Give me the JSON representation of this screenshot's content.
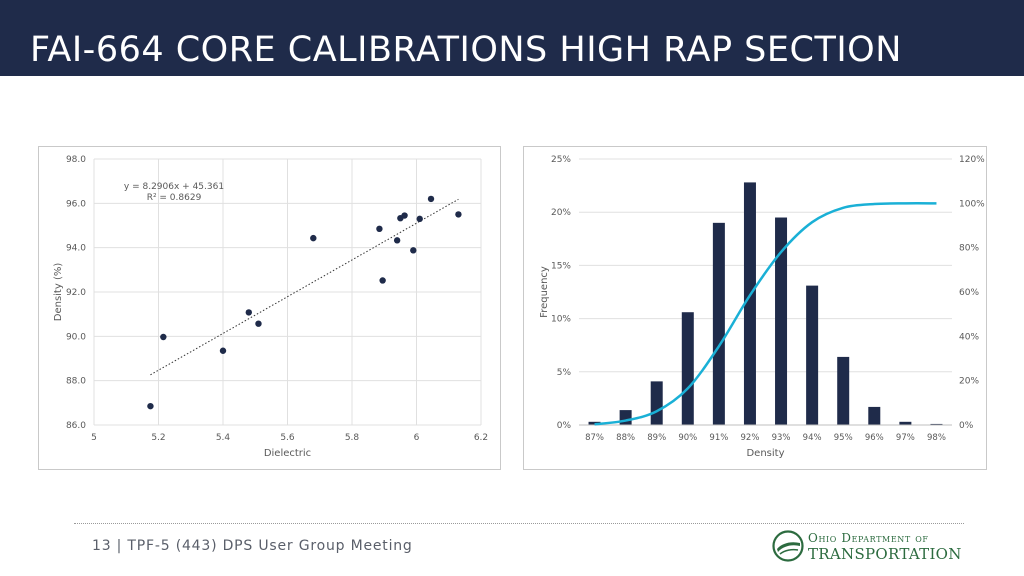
{
  "slide": {
    "title": "FAI-664 CORE CALIBRATIONS HIGH RAP SECTION",
    "footer": "13 | TPF-5 (443) DPS User Group Meeting",
    "logo": {
      "line1": "Ohio Department of",
      "line2": "Transportation",
      "color": "#2c6b3f"
    },
    "header_color": "#1f2b4a"
  },
  "chart_data": [
    {
      "type": "scatter",
      "title": "",
      "xlabel": "Dielectric",
      "ylabel": "Density (%)",
      "xlim": [
        5,
        6.2
      ],
      "ylim": [
        86,
        98
      ],
      "x_ticks": [
        "5",
        "5.2",
        "5.4",
        "5.6",
        "5.8",
        "6",
        "6.2"
      ],
      "y_ticks": [
        "86.0",
        "88.0",
        "90.0",
        "92.0",
        "94.0",
        "96.0",
        "98.0"
      ],
      "grid": true,
      "point_color": "#1f2b4a",
      "points": [
        {
          "x": 5.175,
          "y": 86.85
        },
        {
          "x": 5.215,
          "y": 89.97
        },
        {
          "x": 5.4,
          "y": 89.35
        },
        {
          "x": 5.48,
          "y": 91.08
        },
        {
          "x": 5.51,
          "y": 90.57
        },
        {
          "x": 5.68,
          "y": 94.43
        },
        {
          "x": 5.885,
          "y": 94.85
        },
        {
          "x": 5.895,
          "y": 92.52
        },
        {
          "x": 5.94,
          "y": 94.33
        },
        {
          "x": 5.95,
          "y": 95.33
        },
        {
          "x": 5.963,
          "y": 95.45
        },
        {
          "x": 5.99,
          "y": 93.88
        },
        {
          "x": 6.01,
          "y": 95.3
        },
        {
          "x": 6.045,
          "y": 96.2
        },
        {
          "x": 6.13,
          "y": 95.5
        }
      ],
      "trendline": {
        "equation": "y = 8.2906x + 45.361",
        "r2": "R² = 0.8629",
        "slope": 8.2906,
        "intercept": 45.361,
        "x_range": [
          5.175,
          6.13
        ]
      }
    },
    {
      "type": "bar",
      "title": "",
      "xlabel": "Density",
      "ylabel": "Frequency",
      "categories": [
        "87%",
        "88%",
        "89%",
        "90%",
        "91%",
        "92%",
        "93%",
        "94%",
        "95%",
        "96%",
        "97%",
        "98%"
      ],
      "ylim": [
        0,
        25
      ],
      "y_ticks": [
        "0%",
        "5%",
        "10%",
        "15%",
        "20%",
        "25%"
      ],
      "y2lim": [
        0,
        120
      ],
      "y2_ticks": [
        "0%",
        "20%",
        "40%",
        "60%",
        "80%",
        "100%",
        "120%"
      ],
      "grid": true,
      "bar_color": "#1f2b4a",
      "line_color": "#1ab0d6",
      "series": [
        {
          "values": [
            0.3,
            1.4,
            4.1,
            10.6,
            19.0,
            22.8,
            19.5,
            13.1,
            6.4,
            1.7,
            0.3,
            0.1
          ]
        },
        {
          "axis": "secondary",
          "values": [
            0.3,
            2.0,
            6.2,
            16.5,
            35.5,
            58.5,
            78.0,
            91.5,
            98.0,
            99.7,
            100.0,
            100.0
          ]
        }
      ]
    }
  ]
}
